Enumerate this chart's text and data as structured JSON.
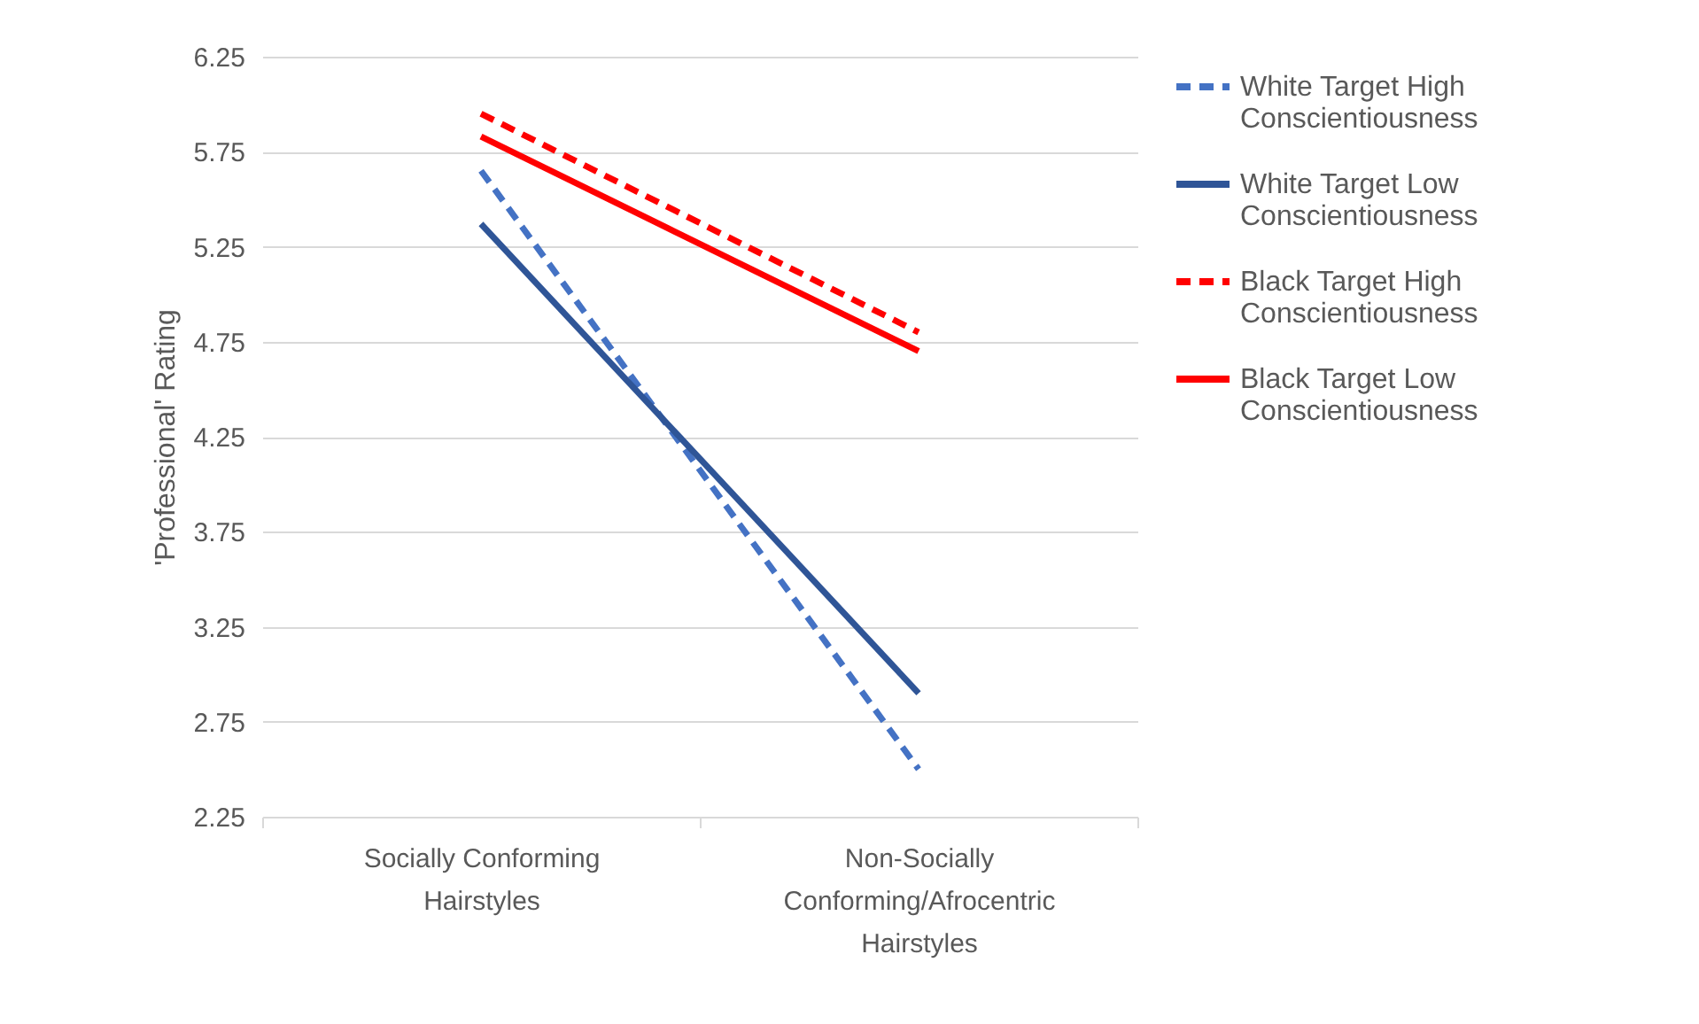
{
  "chart_data": {
    "type": "line",
    "ylabel": "'Professional' Rating",
    "categories": [
      "Socially Conforming Hairstyles",
      "Non-Socially Conforming/Afrocentric Hairstyles"
    ],
    "series": [
      {
        "name": "White Target High Conscientiousness",
        "color": "#4472c4",
        "line_style": "dashed",
        "values": [
          5.65,
          2.5
        ]
      },
      {
        "name": "White Target Low Conscientiousness",
        "color": "#2f5597",
        "line_style": "solid",
        "values": [
          5.37,
          2.9
        ]
      },
      {
        "name": "Black Target High Conscientiousness",
        "color": "#ff0000",
        "line_style": "dashed",
        "values": [
          5.95,
          4.8
        ]
      },
      {
        "name": "Black Target Low Conscientiousness",
        "color": "#ff0000",
        "line_style": "solid",
        "values": [
          5.83,
          4.7
        ]
      }
    ],
    "ylim": [
      2.25,
      6.25
    ],
    "yticks": [
      2.25,
      2.75,
      3.25,
      3.75,
      4.25,
      4.75,
      5.25,
      5.75,
      6.25
    ],
    "grid": "y",
    "legend": "right",
    "marker": "none"
  }
}
